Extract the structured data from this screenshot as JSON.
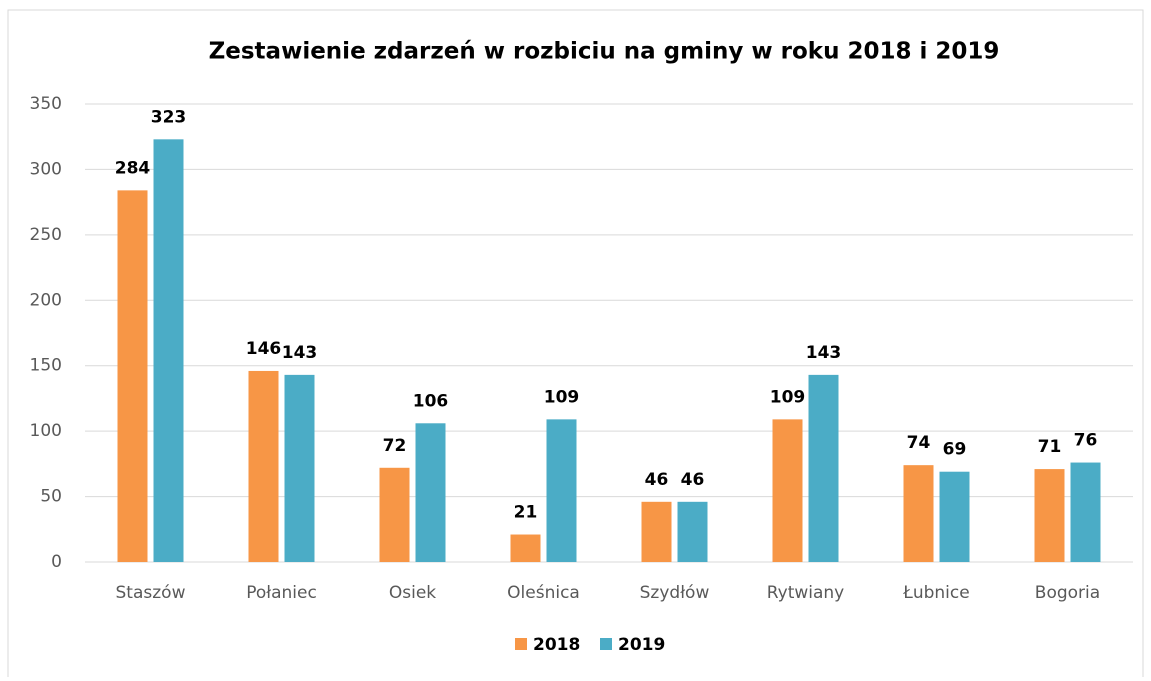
{
  "chart_data": {
    "type": "bar",
    "title": "Zestawienie zdarzeń w rozbiciu na gminy w roku 2018 i 2019",
    "categories": [
      "Staszów",
      "Połaniec",
      "Osiek",
      "Oleśnica",
      "Szydłów",
      "Rytwiany",
      "Łubnice",
      "Bogoria"
    ],
    "series": [
      {
        "name": "2018",
        "color": "#f79646",
        "values": [
          284,
          146,
          72,
          21,
          46,
          109,
          74,
          71
        ]
      },
      {
        "name": "2019",
        "color": "#4bacc6",
        "values": [
          323,
          143,
          106,
          109,
          46,
          143,
          69,
          76
        ]
      }
    ],
    "ylim": [
      0,
      350
    ],
    "yticks": [
      0,
      50,
      100,
      150,
      200,
      250,
      300,
      350
    ],
    "grid": true,
    "legend": "bottom"
  }
}
